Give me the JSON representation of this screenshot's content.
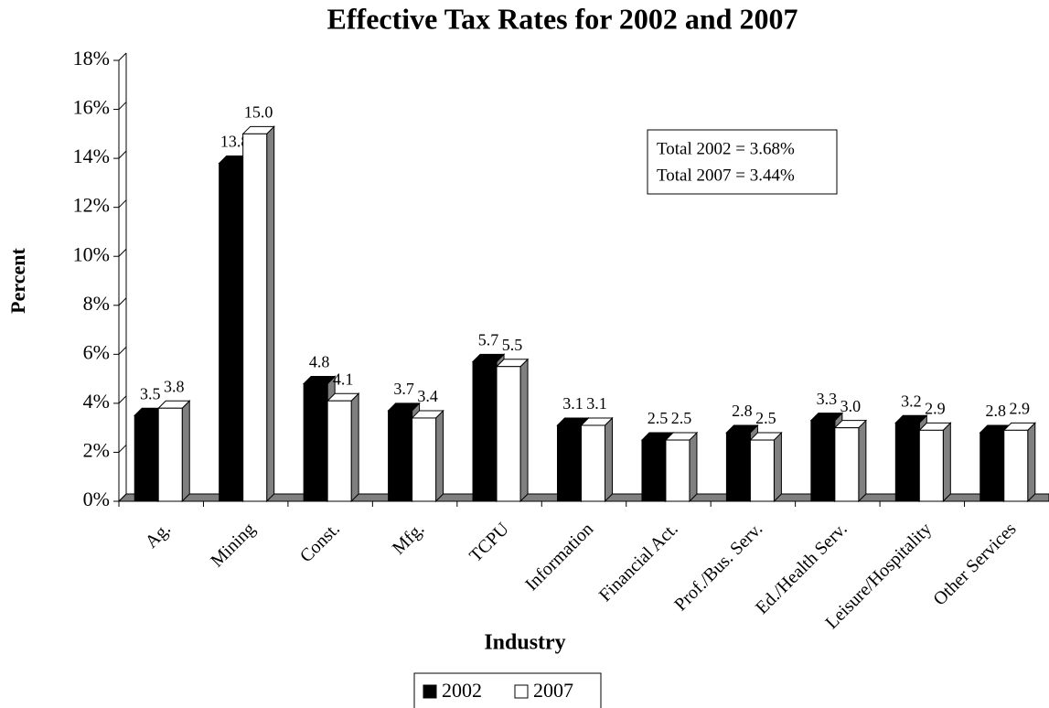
{
  "chart_data": {
    "type": "bar3d",
    "title": "Effective Tax Rates for 2002 and 2007",
    "x_label": "Industry",
    "y_label": "Percent",
    "categories": [
      "Ag.",
      "Mining",
      "Const.",
      "Mfg.",
      "TCPU",
      "Information",
      "Financial Act.",
      "Prof./Bus. Serv.",
      "Ed./Health Serv.",
      "Leisure/Hospitality",
      "Other Services"
    ],
    "series": [
      {
        "name": "2002",
        "color": "#000000",
        "values": [
          3.5,
          13.8,
          4.8,
          3.7,
          5.7,
          3.1,
          2.5,
          2.8,
          3.3,
          3.2,
          2.8
        ],
        "value_labels": [
          "3.5",
          "13.8",
          "4.8",
          "3.7",
          "5.7",
          "3.1",
          "2.5",
          "2.8",
          "3.3",
          "3.2",
          "2.8"
        ]
      },
      {
        "name": "2007",
        "color": "#ffffff",
        "values": [
          3.8,
          15.0,
          4.1,
          3.4,
          5.5,
          3.1,
          2.5,
          2.5,
          3.0,
          2.9,
          2.9
        ],
        "value_labels": [
          "3.8",
          "15.0",
          "4.1",
          "3.4",
          "5.5",
          "3.1",
          "2.5",
          "2.5",
          "3.0",
          "2.9",
          "2.9"
        ]
      }
    ],
    "ylim": [
      0,
      18
    ],
    "yticks": [
      {
        "value": 0,
        "label": "0%"
      },
      {
        "value": 2,
        "label": "2%"
      },
      {
        "value": 4,
        "label": "4%"
      },
      {
        "value": 6,
        "label": "6%"
      },
      {
        "value": 8,
        "label": "8%"
      },
      {
        "value": 10,
        "label": "10%"
      },
      {
        "value": 12,
        "label": "12%"
      },
      {
        "value": 14,
        "label": "14%"
      },
      {
        "value": 16,
        "label": "16%"
      },
      {
        "value": 18,
        "label": "18%"
      }
    ],
    "annotations": [
      "Total 2002 = 3.68%",
      "Total 2007 = 3.44%"
    ],
    "legend": "bottom"
  }
}
